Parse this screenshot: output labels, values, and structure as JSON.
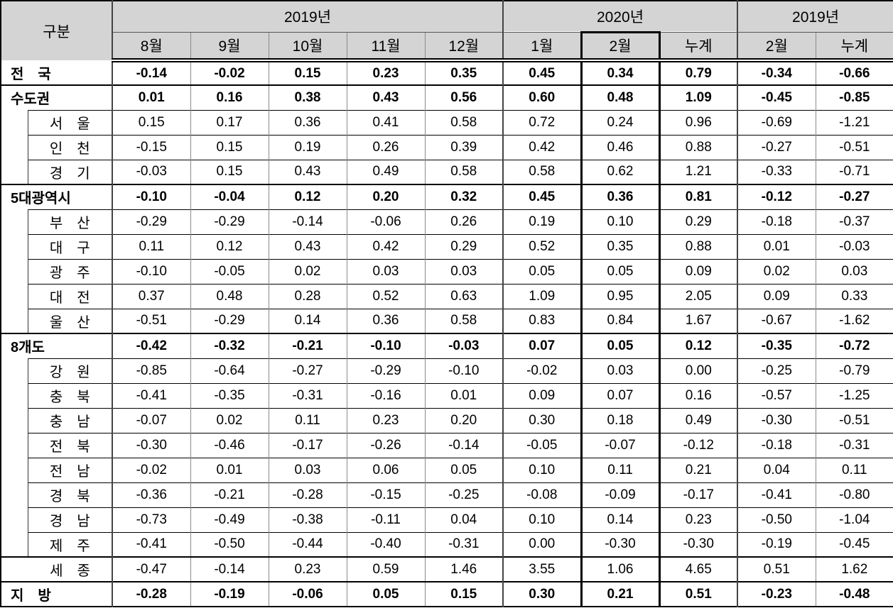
{
  "table": {
    "corner": "구분",
    "groups": [
      {
        "label": "2019년",
        "span": 5
      },
      {
        "label": "2020년",
        "span": 3
      },
      {
        "label": "2019년",
        "span": 2
      }
    ],
    "months": [
      "8월",
      "9월",
      "10월",
      "11월",
      "12월",
      "1월",
      "2월",
      "누계",
      "2월",
      "누계"
    ],
    "highlight_column_index": 6,
    "colors": {
      "header_bg": "#d4d4d4",
      "grid_inner": "#8a8a8a",
      "grid_strong": "#444444",
      "line_black": "#000000"
    },
    "rows": [
      {
        "label": "전　국",
        "type": "group",
        "values": [
          "-0.14",
          "-0.02",
          "0.15",
          "0.23",
          "0.35",
          "0.45",
          "0.34",
          "0.79",
          "-0.34",
          "-0.66"
        ]
      },
      {
        "label": "수도권",
        "type": "group",
        "values": [
          "0.01",
          "0.16",
          "0.38",
          "0.43",
          "0.56",
          "0.60",
          "0.48",
          "1.09",
          "-0.45",
          "-0.85"
        ]
      },
      {
        "label": "서　울",
        "type": "sub",
        "block": 3,
        "values": [
          "0.15",
          "0.17",
          "0.36",
          "0.41",
          "0.58",
          "0.72",
          "0.24",
          "0.96",
          "-0.69",
          "-1.21"
        ]
      },
      {
        "label": "인　천",
        "type": "sub",
        "values": [
          "-0.15",
          "0.15",
          "0.19",
          "0.26",
          "0.39",
          "0.42",
          "0.46",
          "0.88",
          "-0.27",
          "-0.51"
        ]
      },
      {
        "label": "경　기",
        "type": "sub",
        "values": [
          "-0.03",
          "0.15",
          "0.43",
          "0.49",
          "0.58",
          "0.58",
          "0.62",
          "1.21",
          "-0.33",
          "-0.71"
        ]
      },
      {
        "label": "5대광역시",
        "type": "group",
        "values": [
          "-0.10",
          "-0.04",
          "0.12",
          "0.20",
          "0.32",
          "0.45",
          "0.36",
          "0.81",
          "-0.12",
          "-0.27"
        ]
      },
      {
        "label": "부　산",
        "type": "sub",
        "block": 5,
        "values": [
          "-0.29",
          "-0.29",
          "-0.14",
          "-0.06",
          "0.26",
          "0.19",
          "0.10",
          "0.29",
          "-0.18",
          "-0.37"
        ]
      },
      {
        "label": "대　구",
        "type": "sub",
        "values": [
          "0.11",
          "0.12",
          "0.43",
          "0.42",
          "0.29",
          "0.52",
          "0.35",
          "0.88",
          "0.01",
          "-0.03"
        ]
      },
      {
        "label": "광　주",
        "type": "sub",
        "values": [
          "-0.10",
          "-0.05",
          "0.02",
          "0.03",
          "0.03",
          "0.05",
          "0.05",
          "0.09",
          "0.02",
          "0.03"
        ]
      },
      {
        "label": "대　전",
        "type": "sub",
        "values": [
          "0.37",
          "0.48",
          "0.28",
          "0.52",
          "0.63",
          "1.09",
          "0.95",
          "2.05",
          "0.09",
          "0.33"
        ]
      },
      {
        "label": "울　산",
        "type": "sub",
        "values": [
          "-0.51",
          "-0.29",
          "0.14",
          "0.36",
          "0.58",
          "0.83",
          "0.84",
          "1.67",
          "-0.67",
          "-1.62"
        ]
      },
      {
        "label": "8개도",
        "type": "group",
        "values": [
          "-0.42",
          "-0.32",
          "-0.21",
          "-0.10",
          "-0.03",
          "0.07",
          "0.05",
          "0.12",
          "-0.35",
          "-0.72"
        ]
      },
      {
        "label": "강　원",
        "type": "sub",
        "block": 8,
        "values": [
          "-0.85",
          "-0.64",
          "-0.27",
          "-0.29",
          "-0.10",
          "-0.02",
          "0.03",
          "0.00",
          "-0.25",
          "-0.79"
        ]
      },
      {
        "label": "충　북",
        "type": "sub",
        "values": [
          "-0.41",
          "-0.35",
          "-0.31",
          "-0.16",
          "0.01",
          "0.09",
          "0.07",
          "0.16",
          "-0.57",
          "-1.25"
        ]
      },
      {
        "label": "충　남",
        "type": "sub",
        "values": [
          "-0.07",
          "0.02",
          "0.11",
          "0.23",
          "0.20",
          "0.30",
          "0.18",
          "0.49",
          "-0.30",
          "-0.51"
        ]
      },
      {
        "label": "전　북",
        "type": "sub",
        "values": [
          "-0.30",
          "-0.46",
          "-0.17",
          "-0.26",
          "-0.14",
          "-0.05",
          "-0.07",
          "-0.12",
          "-0.18",
          "-0.31"
        ]
      },
      {
        "label": "전　남",
        "type": "sub",
        "values": [
          "-0.02",
          "0.01",
          "0.03",
          "0.06",
          "0.05",
          "0.10",
          "0.11",
          "0.21",
          "0.04",
          "0.11"
        ]
      },
      {
        "label": "경　북",
        "type": "sub",
        "values": [
          "-0.36",
          "-0.21",
          "-0.28",
          "-0.15",
          "-0.25",
          "-0.08",
          "-0.09",
          "-0.17",
          "-0.41",
          "-0.80"
        ]
      },
      {
        "label": "경　남",
        "type": "sub",
        "values": [
          "-0.73",
          "-0.49",
          "-0.38",
          "-0.11",
          "0.04",
          "0.10",
          "0.14",
          "0.23",
          "-0.50",
          "-1.04"
        ]
      },
      {
        "label": "제　주",
        "type": "sub",
        "values": [
          "-0.41",
          "-0.50",
          "-0.44",
          "-0.40",
          "-0.31",
          "0.00",
          "-0.30",
          "-0.30",
          "-0.19",
          "-0.45"
        ]
      },
      {
        "label": "세　종",
        "type": "standalone",
        "values": [
          "-0.47",
          "-0.14",
          "0.23",
          "0.59",
          "1.46",
          "3.55",
          "1.06",
          "4.65",
          "0.51",
          "1.62"
        ]
      },
      {
        "label": "지　방",
        "type": "group",
        "values": [
          "-0.28",
          "-0.19",
          "-0.06",
          "0.05",
          "0.15",
          "0.30",
          "0.21",
          "0.51",
          "-0.23",
          "-0.48"
        ]
      }
    ]
  }
}
